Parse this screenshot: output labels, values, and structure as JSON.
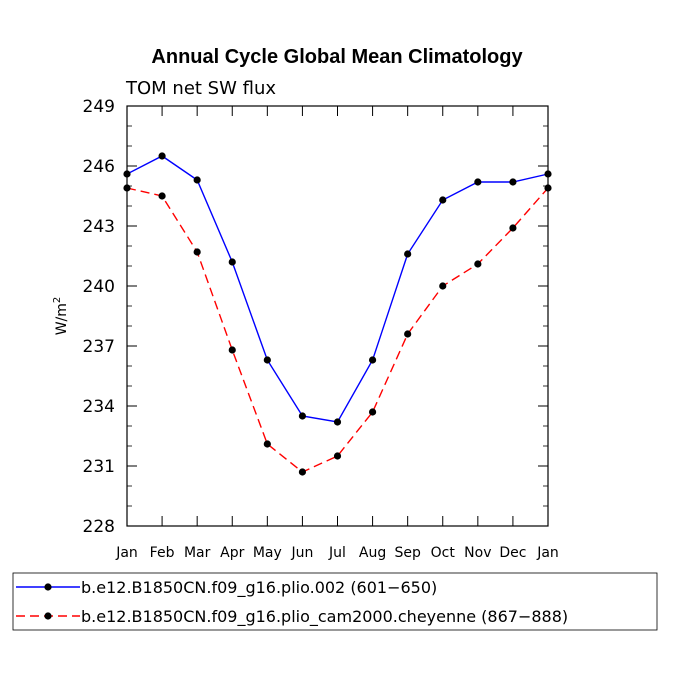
{
  "chart_data": {
    "type": "line",
    "title": "Annual Cycle Global Mean Climatology",
    "subtitle": "TOM net SW flux",
    "ylabel_base": "W/m",
    "ylabel_sup": "2",
    "xlabel": "",
    "categories": [
      "Jan",
      "Feb",
      "Mar",
      "Apr",
      "May",
      "Jun",
      "Jul",
      "Aug",
      "Sep",
      "Oct",
      "Nov",
      "Dec",
      "Jan"
    ],
    "ylim": [
      228,
      249
    ],
    "yticks": [
      228,
      231,
      234,
      237,
      240,
      243,
      246,
      249
    ],
    "grid": false,
    "legend_position": "bottom",
    "series": [
      {
        "name": "b.e12.B1850CN.f09_g16.plio.002 (601−650)",
        "color": "#0000ff",
        "dash": "solid",
        "values": [
          245.6,
          246.5,
          245.3,
          241.2,
          236.3,
          233.5,
          233.2,
          236.3,
          241.6,
          244.3,
          245.2,
          245.2,
          245.6
        ]
      },
      {
        "name": "b.e12.B1850CN.f09_g16.plio_cam2000.cheyenne (867−888)",
        "color": "#ff0000",
        "dash": "dashed",
        "values": [
          244.9,
          244.5,
          241.7,
          236.8,
          232.1,
          230.7,
          231.5,
          233.7,
          237.6,
          240.0,
          241.1,
          242.9,
          244.9
        ]
      }
    ]
  }
}
